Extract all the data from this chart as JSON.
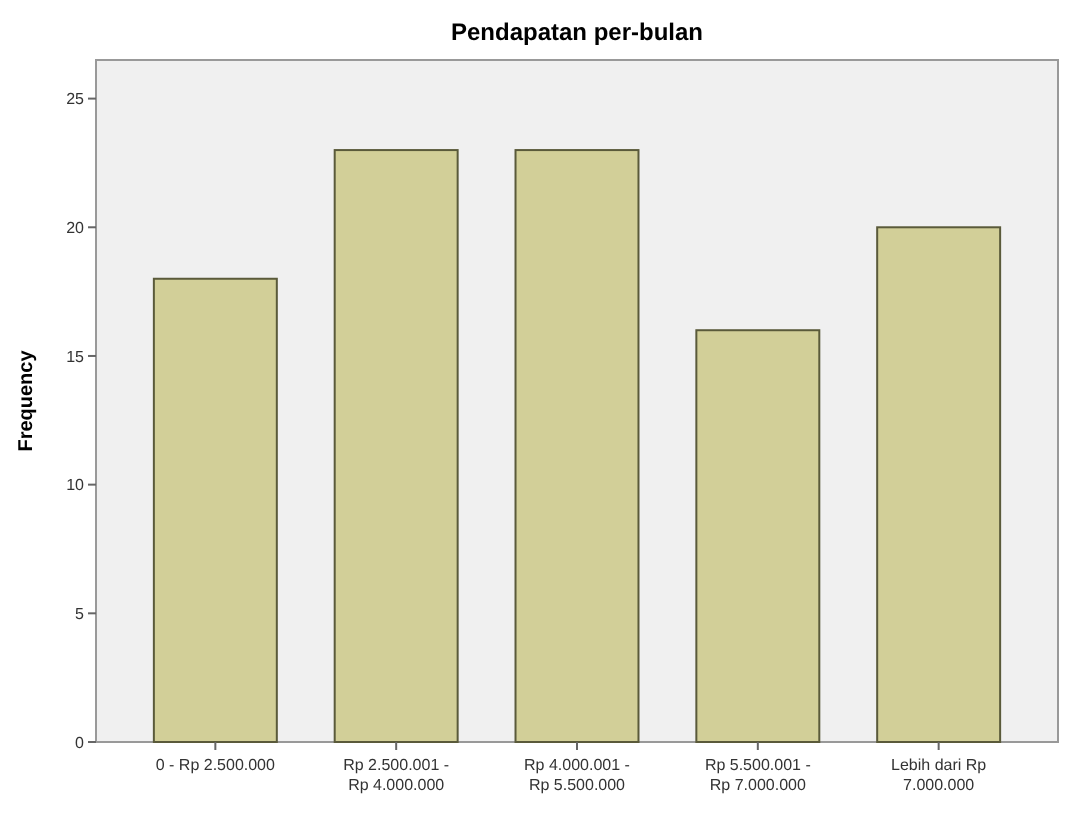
{
  "chart_data": {
    "type": "bar",
    "title": "Pendapatan per-bulan",
    "ylabel": "Frequency",
    "categories": [
      "0 - Rp 2.500.000",
      "Rp 2.500.001 - Rp 4.000.000",
      "Rp 4.000.001 - Rp 5.500.000",
      "Rp 5.500.001 - Rp 7.000.000",
      "Lebih dari Rp 7.000.000"
    ],
    "values": [
      18,
      23,
      23,
      16,
      20
    ],
    "color": "#d2cf98",
    "ylim": [
      0,
      26.5
    ],
    "yticks": [
      0,
      5,
      10,
      15,
      20,
      25
    ],
    "grid": false
  }
}
